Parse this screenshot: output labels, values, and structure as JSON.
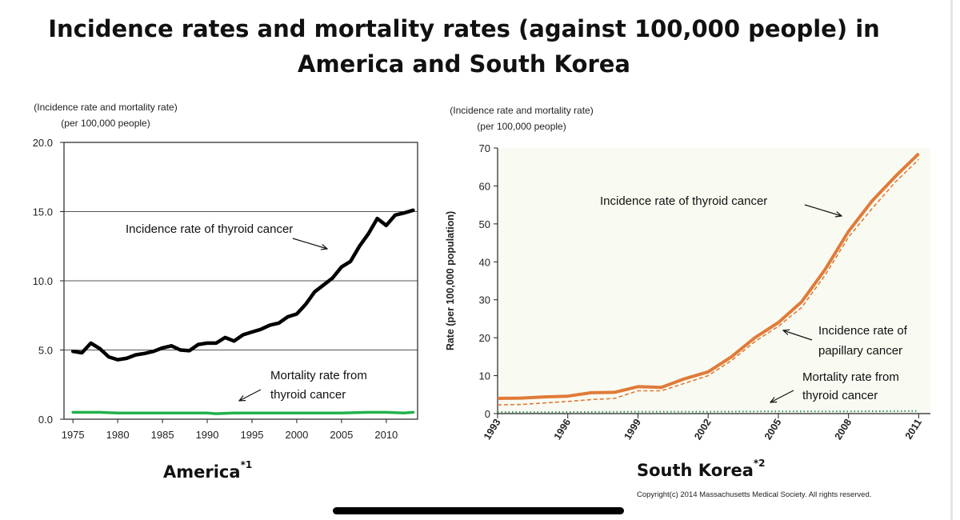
{
  "title_line1": "Incidence rates and mortality rates (against 100,000 people) in",
  "title_line2": "America and South Korea",
  "us_unit_line1": "(Incidence rate and mortality rate)",
  "us_unit_line2": "(per 100,000 people)",
  "kr_unit_line1": "(Incidence rate and mortality rate)",
  "kr_unit_line2": "(per 100,000 people)",
  "us_subtitle": "America",
  "us_subtitle_sup": "*1",
  "kr_subtitle": "South Korea",
  "kr_subtitle_sup": "*2",
  "copyright": "Copyright(c) 2014 Massachusetts Medical Society. All rights reserved.",
  "chart_data": [
    {
      "type": "line",
      "title": "America",
      "xlabel": "",
      "ylabel": "(Incidence rate and mortality rate) (per 100,000 people)",
      "xlim": [
        1974,
        2013.5
      ],
      "ylim": [
        0,
        20
      ],
      "grid": true,
      "y_ticks": [
        {
          "value": 0,
          "label": "0.0"
        },
        {
          "value": 5,
          "label": "5.0"
        },
        {
          "value": 10,
          "label": "10.0"
        },
        {
          "value": 15,
          "label": "15.0"
        },
        {
          "value": 20,
          "label": "20.0"
        }
      ],
      "x_ticks": [
        {
          "value": 1975,
          "label": "1975"
        },
        {
          "value": 1980,
          "label": "1980"
        },
        {
          "value": 1985,
          "label": "1985"
        },
        {
          "value": 1990,
          "label": "1990"
        },
        {
          "value": 1995,
          "label": "1995"
        },
        {
          "value": 2000,
          "label": "2000"
        },
        {
          "value": 2005,
          "label": "2005"
        },
        {
          "value": 2010,
          "label": "2010"
        }
      ],
      "series": [
        {
          "name": "Incidence rate of thyroid cancer",
          "color": "#000000",
          "x": [
            1975,
            1976,
            1977,
            1978,
            1979,
            1980,
            1981,
            1982,
            1983,
            1984,
            1985,
            1986,
            1987,
            1988,
            1989,
            1990,
            1991,
            1992,
            1993,
            1994,
            1995,
            1996,
            1997,
            1998,
            1999,
            2000,
            2001,
            2002,
            2003,
            2004,
            2005,
            2006,
            2007,
            2008,
            2009,
            2010,
            2011,
            2012,
            2013
          ],
          "values": [
            4.9,
            4.8,
            5.5,
            5.1,
            4.5,
            4.3,
            4.4,
            4.65,
            4.75,
            4.9,
            5.15,
            5.3,
            5.0,
            4.95,
            5.4,
            5.5,
            5.5,
            5.9,
            5.65,
            6.1,
            6.3,
            6.5,
            6.8,
            6.95,
            7.4,
            7.6,
            8.3,
            9.2,
            9.7,
            10.2,
            11.0,
            11.4,
            12.5,
            13.4,
            14.5,
            14.0,
            14.75,
            14.9,
            15.1
          ]
        },
        {
          "name": "Mortality rate from thyroid cancer",
          "color": "#22b14c",
          "x": [
            1975,
            1978,
            1980,
            1985,
            1990,
            1991,
            1993,
            1995,
            2000,
            2005,
            2008,
            2010,
            2012,
            2013
          ],
          "values": [
            0.5,
            0.5,
            0.45,
            0.45,
            0.45,
            0.4,
            0.45,
            0.45,
            0.45,
            0.45,
            0.5,
            0.5,
            0.45,
            0.5
          ]
        }
      ],
      "annotations": [
        {
          "text": "Incidence rate of thyroid cancer",
          "series": 0
        },
        {
          "text_line1": "Mortality rate from",
          "text_line2": "thyroid cancer",
          "series": 1
        }
      ]
    },
    {
      "type": "line",
      "title": "South Korea",
      "xlabel": "",
      "ylabel": "Rate (per 100,000 population)",
      "xlim": [
        1993,
        2011.5
      ],
      "ylim": [
        0,
        70
      ],
      "grid": false,
      "y_ticks": [
        {
          "value": 0,
          "label": "0"
        },
        {
          "value": 10,
          "label": "10"
        },
        {
          "value": 20,
          "label": "20"
        },
        {
          "value": 30,
          "label": "30"
        },
        {
          "value": 40,
          "label": "40"
        },
        {
          "value": 50,
          "label": "50"
        },
        {
          "value": 60,
          "label": "60"
        },
        {
          "value": 70,
          "label": "70"
        }
      ],
      "x_ticks": [
        {
          "value": 1993,
          "label": "1993"
        },
        {
          "value": 1996,
          "label": "1996"
        },
        {
          "value": 1999,
          "label": "1999"
        },
        {
          "value": 2002,
          "label": "2002"
        },
        {
          "value": 2005,
          "label": "2005"
        },
        {
          "value": 2008,
          "label": "2008"
        },
        {
          "value": 2011,
          "label": "2011"
        }
      ],
      "series": [
        {
          "name": "Incidence rate of thyroid cancer",
          "color": "#e07b39",
          "style": "solid",
          "x": [
            1993,
            1994,
            1995,
            1996,
            1997,
            1998,
            1999,
            2000,
            2001,
            2002,
            2003,
            2004,
            2005,
            2006,
            2007,
            2008,
            2009,
            2010,
            2011
          ],
          "values": [
            4.0,
            4.1,
            4.4,
            4.6,
            5.5,
            5.6,
            7.1,
            6.9,
            9.2,
            11.0,
            15.0,
            20.0,
            24.0,
            29.5,
            38.0,
            48.0,
            56.0,
            62.5,
            68.5
          ]
        },
        {
          "name": "Incidence rate of papillary cancer",
          "color": "#e07b39",
          "style": "dashed",
          "x": [
            1993,
            1994,
            1995,
            1996,
            1997,
            1998,
            1999,
            2000,
            2001,
            2002,
            2003,
            2004,
            2005,
            2006,
            2007,
            2008,
            2009,
            2010,
            2011
          ],
          "values": [
            2.3,
            2.4,
            2.8,
            3.2,
            3.7,
            4.0,
            6.0,
            6.0,
            8.0,
            10.0,
            14.0,
            19.0,
            23.0,
            28.0,
            36.5,
            46.5,
            54.0,
            61.0,
            67.0
          ]
        },
        {
          "name": "Mortality rate from thyroid cancer",
          "color": "#2e8b57",
          "style": "dotted",
          "x": [
            1993,
            1996,
            1999,
            2002,
            2005,
            2008,
            2011
          ],
          "values": [
            0.4,
            0.4,
            0.5,
            0.5,
            0.6,
            0.6,
            0.7
          ]
        }
      ],
      "annotations": [
        {
          "text": "Incidence rate of thyroid cancer",
          "series": 0
        },
        {
          "text_line1": "Incidence rate of",
          "text_line2": "papillary cancer",
          "series": 1
        },
        {
          "text_line1": "Mortality rate from",
          "text_line2": "thyroid cancer",
          "series": 2
        }
      ]
    }
  ]
}
